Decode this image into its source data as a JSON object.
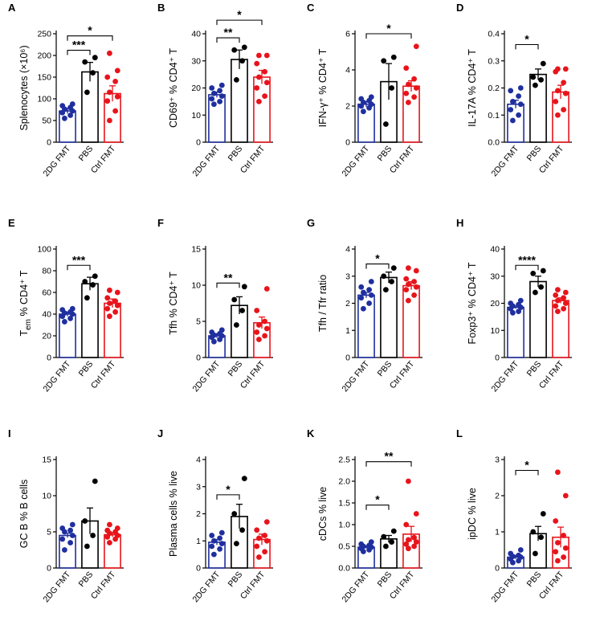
{
  "groups": [
    "2DG FMT",
    "PBS",
    "Ctrl FMT"
  ],
  "colors": {
    "2DG FMT": "#1f2f9e",
    "PBS": "#000000",
    "Ctrl FMT": "#e8141b"
  },
  "chart_data": [
    {
      "letter": "A",
      "type": "bar",
      "ylabel": "Splenocytes (×10⁶)",
      "ylim": [
        0,
        250
      ],
      "yticks": [
        0,
        50,
        100,
        150,
        200,
        250
      ],
      "tick_labels": [
        "0",
        "50",
        "100",
        "150",
        "200",
        "250"
      ],
      "means": [
        72,
        162,
        112
      ],
      "sems": [
        6,
        22,
        18
      ],
      "points": [
        [
          55,
          62,
          68,
          72,
          76,
          80,
          84,
          88
        ],
        [
          115,
          160,
          185,
          195
        ],
        [
          50,
          72,
          95,
          105,
          115,
          140,
          150,
          165,
          205
        ]
      ],
      "sig": [
        {
          "from": 0,
          "to": 1,
          "label": "***",
          "y": 212
        },
        {
          "from": 0,
          "to": 2,
          "label": "*",
          "y": 245
        }
      ]
    },
    {
      "letter": "B",
      "type": "bar",
      "ylabel": "CD69⁺ % CD4⁺ T",
      "ylim": [
        0,
        40
      ],
      "yticks": [
        0,
        10,
        20,
        30,
        40
      ],
      "tick_labels": [
        "0",
        "10",
        "20",
        "30",
        "40"
      ],
      "means": [
        17.5,
        30.5,
        24
      ],
      "sems": [
        1,
        3.5,
        2.5
      ],
      "points": [
        [
          14,
          15,
          16,
          17,
          18,
          19,
          20,
          21
        ],
        [
          23,
          30,
          34,
          35
        ],
        [
          15,
          17,
          20,
          22,
          24,
          26,
          29,
          32,
          32
        ]
      ],
      "sig": [
        {
          "from": 0,
          "to": 1,
          "label": "**",
          "y": 38.5
        },
        {
          "from": 0,
          "to": 2,
          "label": "*",
          "y": 45
        }
      ]
    },
    {
      "letter": "C",
      "type": "bar",
      "ylabel": "IFN-γ⁺ % CD4⁺ T",
      "ylim": [
        0,
        6
      ],
      "yticks": [
        0,
        2,
        4,
        6
      ],
      "tick_labels": [
        "0",
        "2",
        "4",
        "6"
      ],
      "means": [
        2.1,
        3.35,
        3.1
      ],
      "sems": [
        0.15,
        1.0,
        0.3
      ],
      "points": [
        [
          1.7,
          1.9,
          2.0,
          2.1,
          2.2,
          2.3,
          2.4,
          2.5
        ],
        [
          1.0,
          3.0,
          4.5,
          4.7
        ],
        [
          2.2,
          2.5,
          2.7,
          3.0,
          3.2,
          3.5,
          4.1,
          5.3
        ]
      ],
      "sig": [
        {
          "from": 0,
          "to": 2,
          "label": "*",
          "y": 6.0
        }
      ]
    },
    {
      "letter": "D",
      "type": "bar",
      "ylabel": "IL-17A % CD4⁺ T",
      "ylim": [
        0,
        0.4
      ],
      "yticks": [
        0,
        0.1,
        0.2,
        0.3,
        0.4
      ],
      "tick_labels": [
        "0.0",
        "0.1",
        "0.2",
        "0.3",
        "0.4"
      ],
      "means": [
        0.14,
        0.25,
        0.185
      ],
      "sems": [
        0.015,
        0.02,
        0.025
      ],
      "points": [
        [
          0.08,
          0.1,
          0.12,
          0.14,
          0.15,
          0.17,
          0.19,
          0.2
        ],
        [
          0.21,
          0.23,
          0.24,
          0.29
        ],
        [
          0.1,
          0.12,
          0.15,
          0.18,
          0.19,
          0.22,
          0.26,
          0.27,
          0.27
        ]
      ],
      "sig": [
        {
          "from": 0,
          "to": 1,
          "label": "*",
          "y": 0.36
        }
      ]
    },
    {
      "letter": "E",
      "type": "bar",
      "ylabel": "T_em % CD4⁺ T",
      "ylim": [
        0,
        100
      ],
      "yticks": [
        0,
        20,
        40,
        60,
        80,
        100
      ],
      "tick_labels": [
        "0",
        "20",
        "40",
        "60",
        "80",
        "100"
      ],
      "means": [
        40,
        68,
        50
      ],
      "sems": [
        2,
        6,
        4
      ],
      "points": [
        [
          33,
          36,
          38,
          40,
          41,
          42,
          44,
          45
        ],
        [
          55,
          67,
          70,
          75
        ],
        [
          38,
          42,
          45,
          48,
          50,
          52,
          55,
          60,
          62
        ]
      ],
      "sig": [
        {
          "from": 0,
          "to": 1,
          "label": "***",
          "y": 85
        }
      ]
    },
    {
      "letter": "F",
      "type": "bar",
      "ylabel": "Tfh % CD4⁺ T",
      "ylim": [
        0,
        15
      ],
      "yticks": [
        0,
        5,
        10,
        15
      ],
      "tick_labels": [
        "0",
        "5",
        "10",
        "15"
      ],
      "means": [
        3.0,
        7.2,
        4.8
      ],
      "sems": [
        0.3,
        1.2,
        0.8
      ],
      "points": [
        [
          2.2,
          2.5,
          2.8,
          3.0,
          3.1,
          3.3,
          3.5,
          3.8
        ],
        [
          4.5,
          6.5,
          8.0,
          9.8
        ],
        [
          2.5,
          3.0,
          3.5,
          4.0,
          4.5,
          5.0,
          6.5,
          9.5
        ]
      ],
      "sig": [
        {
          "from": 0,
          "to": 1,
          "label": "**",
          "y": 10.3
        }
      ]
    },
    {
      "letter": "G",
      "type": "bar",
      "ylabel": "Tfh / Tfr ratio",
      "ylim": [
        0,
        4
      ],
      "yticks": [
        0,
        1,
        2,
        3,
        4
      ],
      "tick_labels": [
        "0",
        "1",
        "2",
        "3",
        "4"
      ],
      "means": [
        2.3,
        2.95,
        2.65
      ],
      "sems": [
        0.1,
        0.2,
        0.15
      ],
      "points": [
        [
          1.8,
          2.0,
          2.2,
          2.3,
          2.4,
          2.5,
          2.6,
          2.8
        ],
        [
          2.5,
          2.8,
          3.0,
          3.3
        ],
        [
          2.1,
          2.3,
          2.5,
          2.6,
          2.7,
          2.8,
          2.9,
          3.2,
          3.3
        ]
      ],
      "sig": [
        {
          "from": 0,
          "to": 1,
          "label": "*",
          "y": 3.45
        }
      ]
    },
    {
      "letter": "H",
      "type": "bar",
      "ylabel": "Foxp3⁺ % CD4⁺ T",
      "ylim": [
        0,
        40
      ],
      "yticks": [
        0,
        10,
        20,
        30,
        40
      ],
      "tick_labels": [
        "0",
        "10",
        "20",
        "30",
        "40"
      ],
      "means": [
        18.5,
        28,
        21
      ],
      "sems": [
        0.5,
        2,
        1
      ],
      "points": [
        [
          16.5,
          17,
          18,
          18.5,
          19,
          19.5,
          20,
          21
        ],
        [
          24,
          26,
          31,
          32
        ],
        [
          17,
          18,
          19,
          20,
          21,
          22,
          23,
          24,
          25
        ]
      ],
      "sig": [
        {
          "from": 0,
          "to": 1,
          "label": "****",
          "y": 34
        }
      ]
    },
    {
      "letter": "I",
      "type": "bar",
      "ylabel": "GC B % B cells",
      "ylim": [
        0,
        15
      ],
      "yticks": [
        0,
        5,
        10,
        15
      ],
      "tick_labels": [
        "0",
        "5",
        "10",
        "15"
      ],
      "means": [
        4.5,
        6.5,
        4.6
      ],
      "sems": [
        0.3,
        1.8,
        0.3
      ],
      "points": [
        [
          2.5,
          3.5,
          4.0,
          4.5,
          5.0,
          5.2,
          5.5,
          6.0
        ],
        [
          3.0,
          4.5,
          6.5,
          12
        ],
        [
          3.5,
          4.0,
          4.3,
          4.5,
          4.8,
          5.0,
          5.2,
          5.5,
          6.0
        ]
      ],
      "sig": []
    },
    {
      "letter": "J",
      "type": "bar",
      "ylabel": "Plasma cells % live",
      "ylim": [
        0,
        4
      ],
      "yticks": [
        0,
        1,
        2,
        3,
        4
      ],
      "tick_labels": [
        "0",
        "1",
        "2",
        "3",
        "4"
      ],
      "means": [
        0.95,
        1.9,
        1.05
      ],
      "sems": [
        0.1,
        0.45,
        0.2
      ],
      "points": [
        [
          0.5,
          0.7,
          0.8,
          0.9,
          1.0,
          1.1,
          1.2,
          1.3
        ],
        [
          0.9,
          1.4,
          2.0,
          3.3
        ],
        [
          0.4,
          0.6,
          0.8,
          1.0,
          1.1,
          1.2,
          1.4,
          1.7
        ]
      ],
      "sig": [
        {
          "from": 0,
          "to": 1,
          "label": "*",
          "y": 2.7
        }
      ]
    },
    {
      "letter": "K",
      "type": "bar",
      "ylabel": "cDCs % live",
      "ylim": [
        0,
        2.5
      ],
      "yticks": [
        0,
        0.5,
        1,
        1.5,
        2,
        2.5
      ],
      "tick_labels": [
        "0.0",
        "0.5",
        "1.0",
        "1.5",
        "2.0",
        "2.5"
      ],
      "means": [
        0.48,
        0.67,
        0.78
      ],
      "sems": [
        0.03,
        0.08,
        0.18
      ],
      "points": [
        [
          0.38,
          0.42,
          0.45,
          0.48,
          0.5,
          0.52,
          0.55,
          0.6
        ],
        [
          0.5,
          0.6,
          0.72,
          0.85
        ],
        [
          0.45,
          0.5,
          0.55,
          0.6,
          0.65,
          0.7,
          1.0,
          1.25,
          2.0
        ]
      ],
      "sig": [
        {
          "from": 0,
          "to": 1,
          "label": "*",
          "y": 1.45
        },
        {
          "from": 0,
          "to": 2,
          "label": "**",
          "y": 2.45
        }
      ]
    },
    {
      "letter": "L",
      "type": "bar",
      "ylabel": "ipDC % live",
      "ylim": [
        0,
        3
      ],
      "yticks": [
        0,
        1,
        2,
        3
      ],
      "tick_labels": [
        "0",
        "1",
        "2",
        "3"
      ],
      "means": [
        0.3,
        0.95,
        0.85
      ],
      "sems": [
        0.05,
        0.2,
        0.28
      ],
      "points": [
        [
          0.15,
          0.2,
          0.25,
          0.3,
          0.32,
          0.35,
          0.4,
          0.5
        ],
        [
          0.4,
          0.85,
          1.0,
          1.5
        ],
        [
          0.2,
          0.3,
          0.45,
          0.55,
          0.7,
          0.9,
          1.3,
          2.0,
          2.65
        ]
      ],
      "sig": [
        {
          "from": 0,
          "to": 1,
          "label": "*",
          "y": 2.7
        }
      ]
    }
  ]
}
